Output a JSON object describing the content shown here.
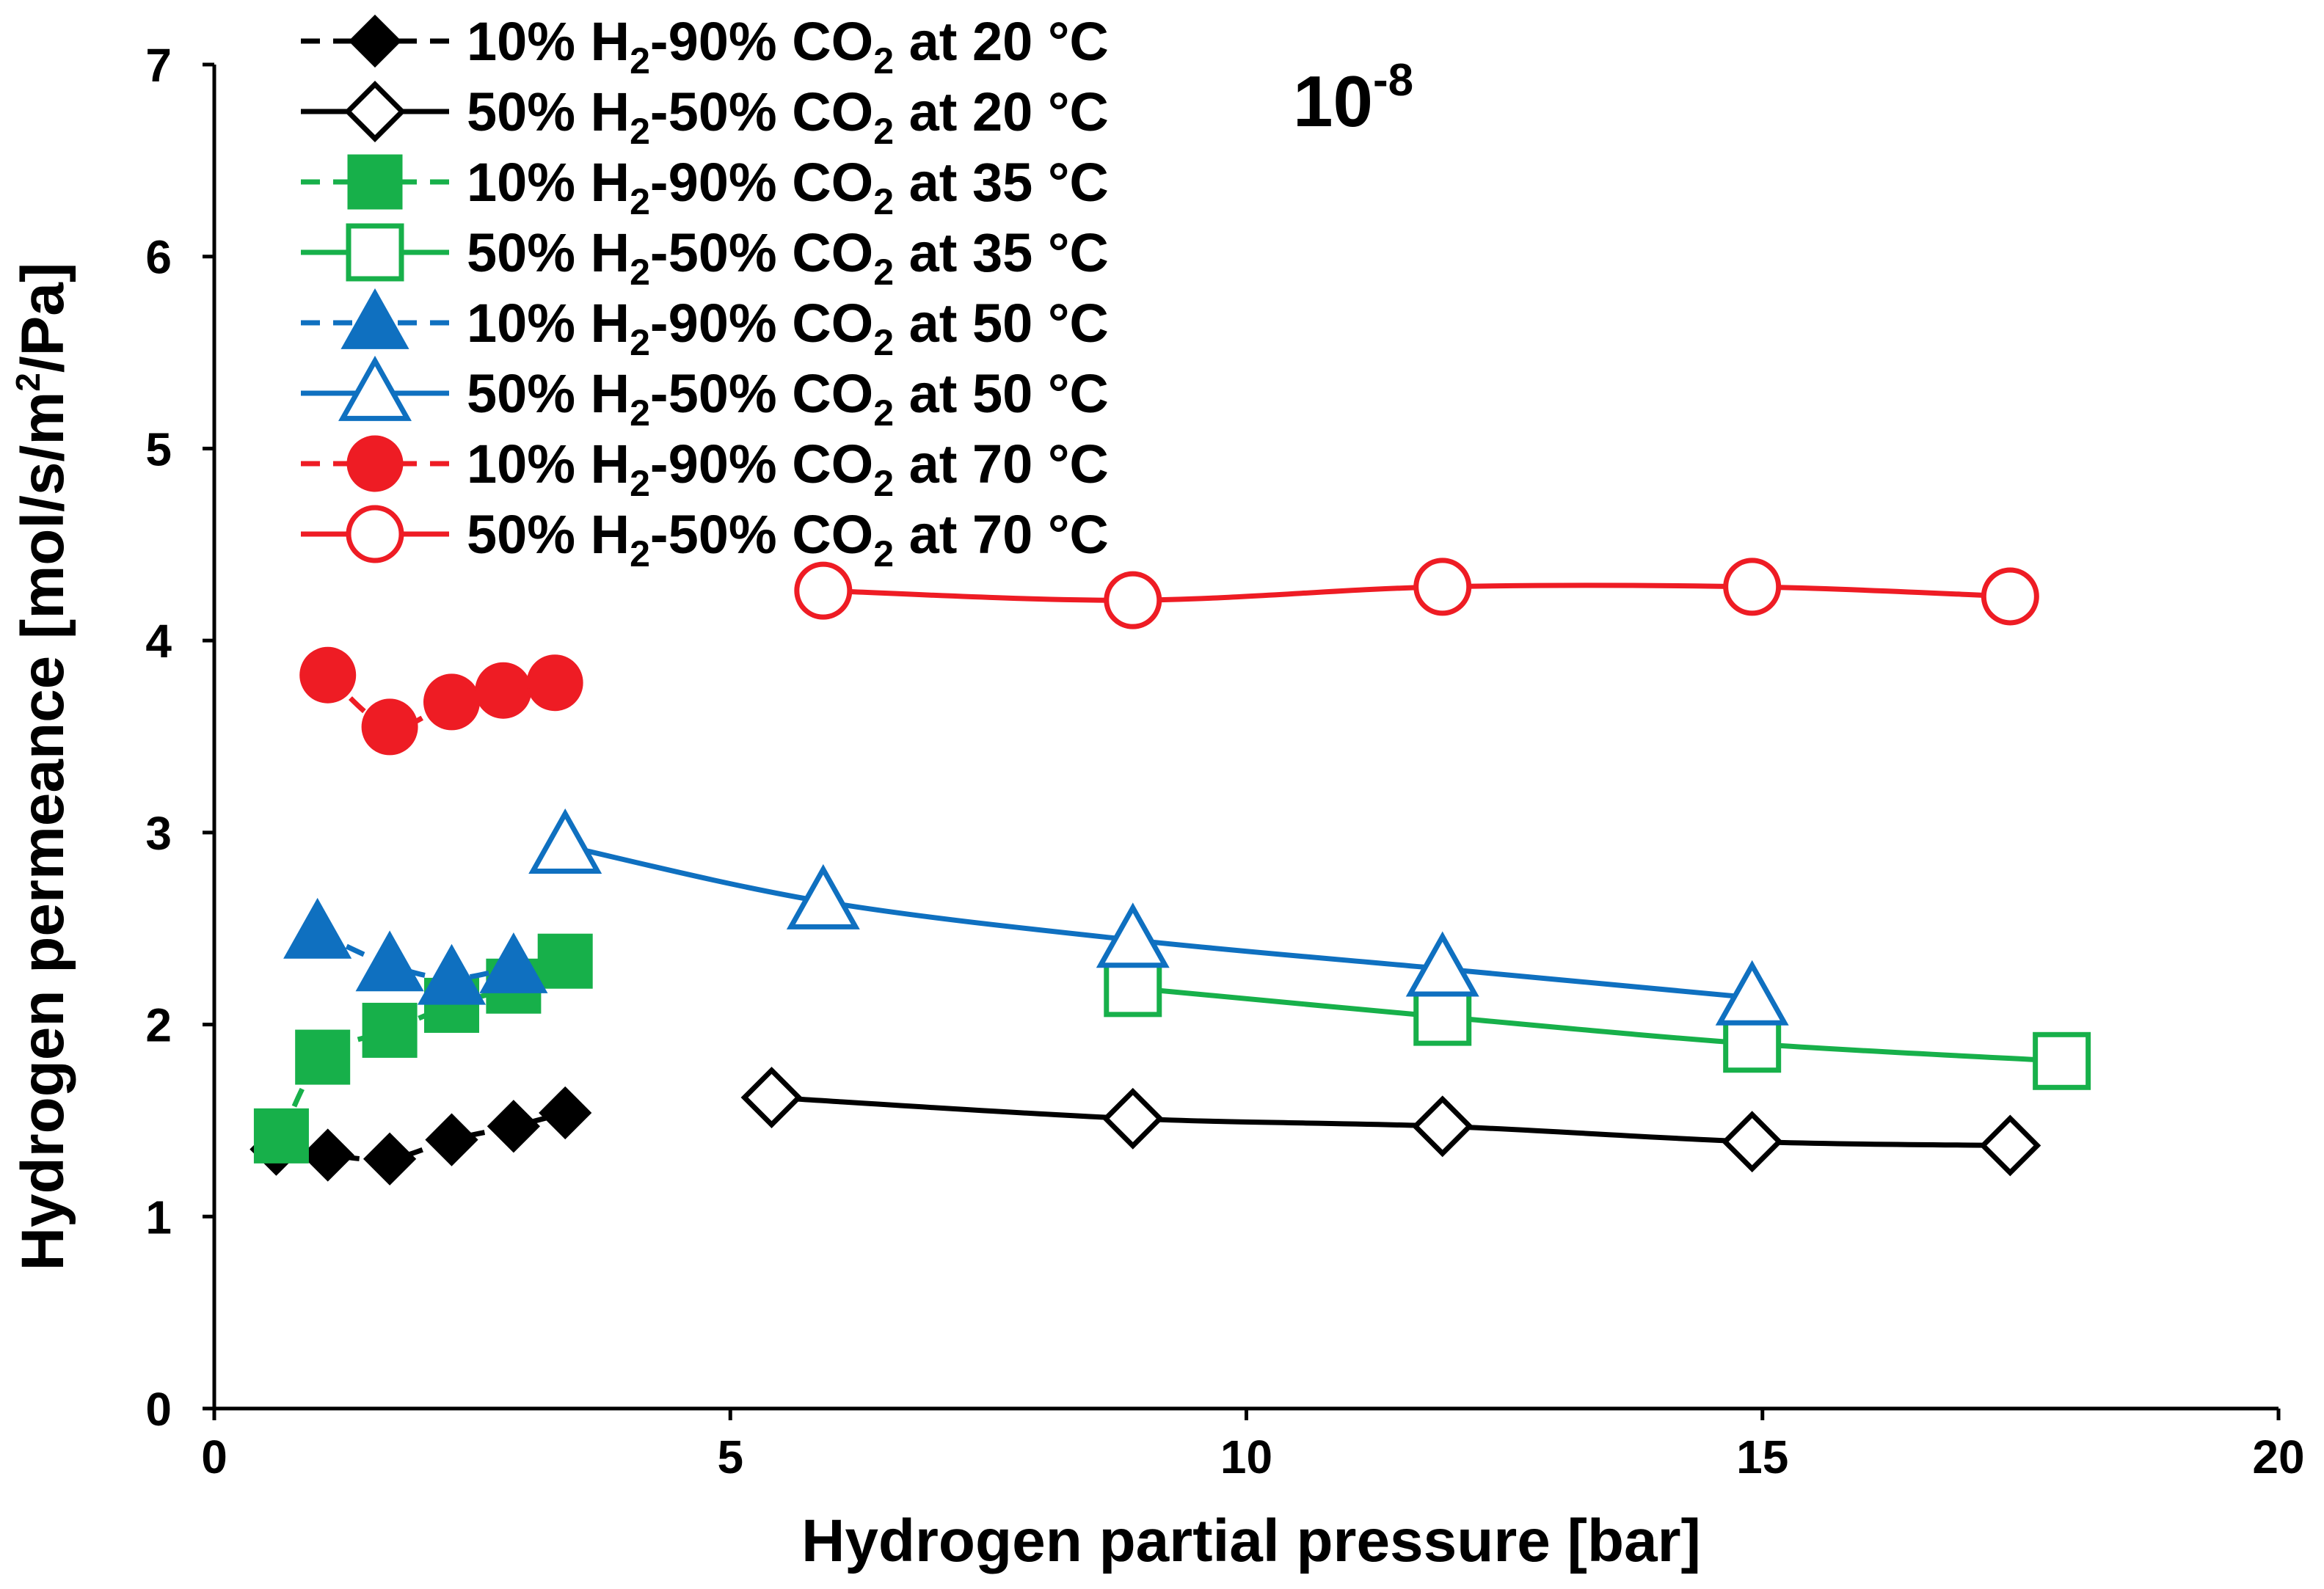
{
  "chart_data": {
    "type": "line",
    "title": "",
    "scale_annotation": {
      "base": "10",
      "exponent": "-8"
    },
    "xlabel": "Hydrogen partial pressure [bar]",
    "ylabel": {
      "prefix": "Hydrogen permeance [mol/s/m",
      "sup": "2",
      "suffix": "/Pa]"
    },
    "xlim": [
      0,
      20
    ],
    "ylim": [
      0,
      7
    ],
    "xticks": [
      0,
      5,
      10,
      15,
      20
    ],
    "yticks": [
      0,
      1,
      2,
      3,
      4,
      5,
      6,
      7
    ],
    "grid": false,
    "legend_position": "top-left",
    "series": [
      {
        "name": "10% H2-90% CO2 at 20 °C",
        "legend": {
          "p1": "10% H",
          "s1": "2",
          "p2": "-90% CO",
          "s2": "2",
          "p3": " at 20 °C"
        },
        "color": "#000000",
        "marker": "diamond",
        "filled": true,
        "line": "dashed",
        "x": [
          0.6,
          1.1,
          1.7,
          2.3,
          2.9,
          3.4
        ],
        "y": [
          1.35,
          1.32,
          1.3,
          1.4,
          1.47,
          1.54
        ]
      },
      {
        "name": "50% H2-50% CO2 at 20 °C",
        "legend": {
          "p1": "50% H",
          "s1": "2",
          "p2": "-50% CO",
          "s2": "2",
          "p3": " at 20 °C"
        },
        "color": "#000000",
        "marker": "diamond",
        "filled": false,
        "line": "solid",
        "x": [
          5.4,
          8.9,
          11.9,
          14.9,
          17.4
        ],
        "y": [
          1.62,
          1.51,
          1.47,
          1.39,
          1.37
        ]
      },
      {
        "name": "10% H2-90% CO2 at 35 °C",
        "legend": {
          "p1": "10% H",
          "s1": "2",
          "p2": "-90% CO",
          "s2": "2",
          "p3": " at 35 °C"
        },
        "color": "#17b04a",
        "marker": "square",
        "filled": true,
        "line": "dashed",
        "x": [
          0.65,
          1.05,
          1.7,
          2.3,
          2.9,
          3.4
        ],
        "y": [
          1.42,
          1.83,
          1.97,
          2.1,
          2.2,
          2.33
        ]
      },
      {
        "name": "50% H2-50% CO2 at 35 °C",
        "legend": {
          "p1": "50% H",
          "s1": "2",
          "p2": "-50% CO",
          "s2": "2",
          "p3": " at 35 °C"
        },
        "color": "#17b04a",
        "marker": "square",
        "filled": false,
        "line": "solid",
        "x": [
          8.9,
          11.9,
          14.9,
          17.9
        ],
        "y": [
          2.19,
          2.04,
          1.9,
          1.81
        ]
      },
      {
        "name": "10% H2-90% CO2 at 50 °C",
        "legend": {
          "p1": "10% H",
          "s1": "2",
          "p2": "-90% CO",
          "s2": "2",
          "p3": " at 50 °C"
        },
        "color": "#0f70c0",
        "marker": "triangle",
        "filled": true,
        "line": "dashed",
        "x": [
          1.0,
          1.7,
          2.3,
          2.9
        ],
        "y": [
          2.48,
          2.31,
          2.24,
          2.3
        ]
      },
      {
        "name": "50% H2-50% CO2 at 50 °C",
        "legend": {
          "p1": "50% H",
          "s1": "2",
          "p2": "-50% CO",
          "s2": "2",
          "p3": " at 50 °C"
        },
        "color": "#0f70c0",
        "marker": "triangle",
        "filled": false,
        "line": "solid",
        "x": [
          3.4,
          5.9,
          8.9,
          11.9,
          14.9
        ],
        "y": [
          2.93,
          2.64,
          2.44,
          2.29,
          2.14
        ]
      },
      {
        "name": "10% H2-90% CO2 at 70 °C",
        "legend": {
          "p1": "10% H",
          "s1": "2",
          "p2": "-90% CO",
          "s2": "2",
          "p3": " at 70 °C"
        },
        "color": "#ee1c24",
        "marker": "circle",
        "filled": true,
        "line": "dashed",
        "x": [
          1.1,
          1.7,
          2.3,
          2.8,
          3.3
        ],
        "y": [
          3.82,
          3.55,
          3.68,
          3.74,
          3.78
        ]
      },
      {
        "name": "50% H2-50% CO2 at 70 °C",
        "legend": {
          "p1": "50% H",
          "s1": "2",
          "p2": "-50% CO",
          "s2": "2",
          "p3": " at 70 °C"
        },
        "color": "#ee1c24",
        "marker": "circle",
        "filled": false,
        "line": "solid",
        "x": [
          5.9,
          8.9,
          11.9,
          14.9,
          17.4
        ],
        "y": [
          4.26,
          4.21,
          4.28,
          4.28,
          4.23
        ]
      }
    ]
  }
}
